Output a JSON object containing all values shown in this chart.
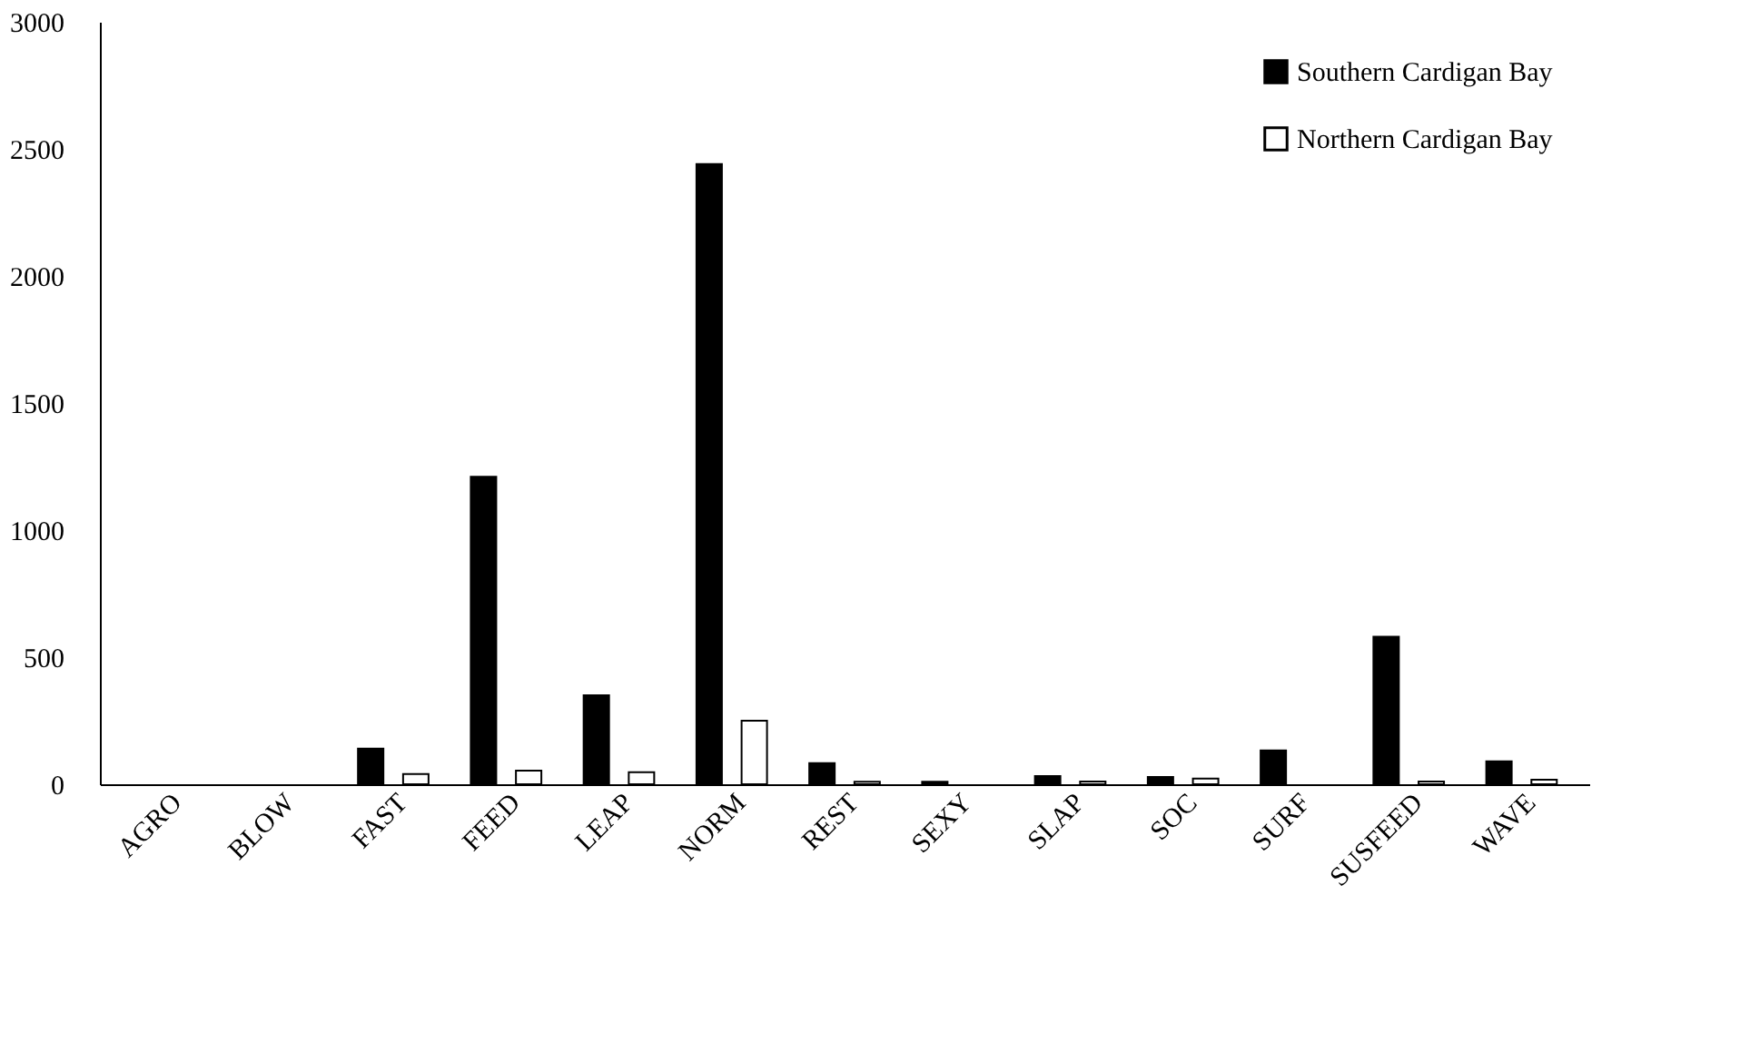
{
  "chart_data": {
    "type": "bar",
    "categories": [
      "AGRO",
      "BLOW",
      "FAST",
      "FEED",
      "LEAP",
      "NORM",
      "REST",
      "SEXY",
      "SLAP",
      "SOC",
      "SURF",
      "SUSFEED",
      "WAVE"
    ],
    "series": [
      {
        "name": "Southern Cardigan Bay",
        "color": "#000000",
        "values": [
          0,
          0,
          140,
          1210,
          350,
          2440,
          83,
          10,
          32,
          29,
          133,
          580,
          90
        ]
      },
      {
        "name": "Northern Cardigan Bay",
        "color": "#ffffff",
        "values": [
          0,
          0,
          40,
          54,
          47,
          250,
          10,
          0,
          11,
          22,
          0,
          11,
          18
        ]
      }
    ],
    "ylim": [
      0,
      3000
    ],
    "yticks": [
      0,
      500,
      1000,
      1500,
      2000,
      2500,
      3000
    ],
    "grid": false,
    "legend": "top right"
  }
}
